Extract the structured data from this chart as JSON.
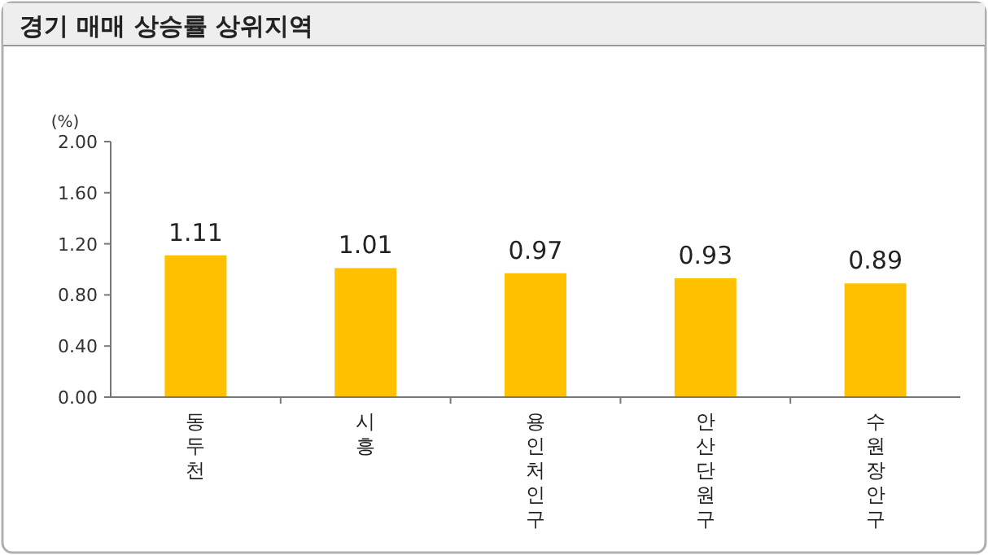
{
  "chart_data": {
    "type": "bar",
    "title": "경기 매매 상승률 상위지역",
    "ylabel": "(%)",
    "categories": [
      "동두천",
      "시흥",
      "용인처인구",
      "안산단원구",
      "수원장안구"
    ],
    "values": [
      1.11,
      1.01,
      0.97,
      0.93,
      0.89
    ],
    "color": "#ffc000",
    "data_labels": true,
    "grid": false,
    "ylim": [
      0,
      2
    ],
    "yticks": [
      {
        "value": 0,
        "label": "0.00"
      },
      {
        "value": 0.4,
        "label": "0.40"
      },
      {
        "value": 0.8,
        "label": "0.80"
      },
      {
        "value": 1.2,
        "label": "1.20"
      },
      {
        "value": 1.6,
        "label": "1.60"
      },
      {
        "value": 2,
        "label": "2.00"
      }
    ]
  }
}
